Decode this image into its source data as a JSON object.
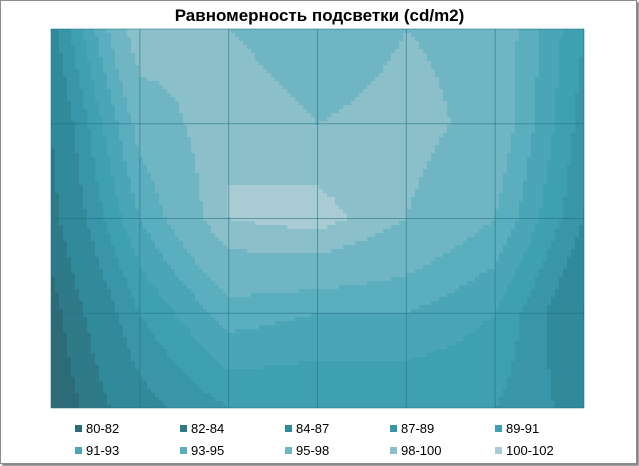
{
  "chart_data": {
    "type": "heatmap",
    "title": "Равномерность подсветки (cd/m2)",
    "xlabel": "",
    "ylabel": "",
    "grid": true,
    "legend_position": "bottom",
    "columns": 7,
    "rows": 5,
    "bands": [
      {
        "label": "80-82",
        "min": 80,
        "max": 82,
        "color": "#2e6b78"
      },
      {
        "label": "82-84",
        "min": 82,
        "max": 84,
        "color": "#2f7a89"
      },
      {
        "label": "84-87",
        "min": 84,
        "max": 87,
        "color": "#318a9a"
      },
      {
        "label": "87-89",
        "min": 87,
        "max": 89,
        "color": "#3896a8"
      },
      {
        "label": "89-91",
        "min": 89,
        "max": 91,
        "color": "#3fa0b1"
      },
      {
        "label": "91-93",
        "min": 91,
        "max": 93,
        "color": "#4aa6b6"
      },
      {
        "label": "93-95",
        "min": 93,
        "max": 95,
        "color": "#5aaebd"
      },
      {
        "label": "95-98",
        "min": 95,
        "max": 98,
        "color": "#6fb5c3"
      },
      {
        "label": "98-100",
        "min": 98,
        "max": 100,
        "color": "#8bbfca"
      },
      {
        "label": "100-102",
        "min": 100,
        "max": 102,
        "color": "#a9cbd4"
      }
    ],
    "values": [
      [
        86,
        100,
        98,
        96,
        98,
        97,
        89
      ],
      [
        84,
        96,
        100,
        98,
        99,
        97,
        88
      ],
      [
        83,
        93,
        100,
        101,
        98,
        95,
        87
      ],
      [
        81,
        89,
        94,
        93,
        93,
        91,
        84
      ],
      [
        80,
        86,
        89,
        89,
        89,
        89,
        86
      ]
    ]
  }
}
